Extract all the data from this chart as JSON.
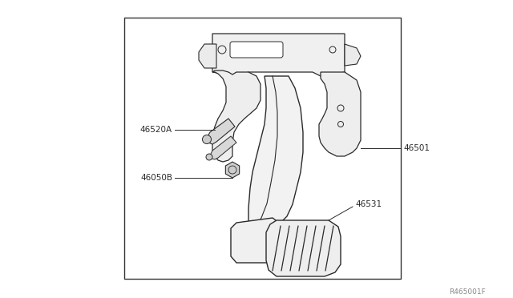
{
  "bg_color": "#ffffff",
  "box_color": "#000000",
  "line_color": "#2a2a2a",
  "label_color": "#2a2a2a",
  "ref_code": "R465001F"
}
